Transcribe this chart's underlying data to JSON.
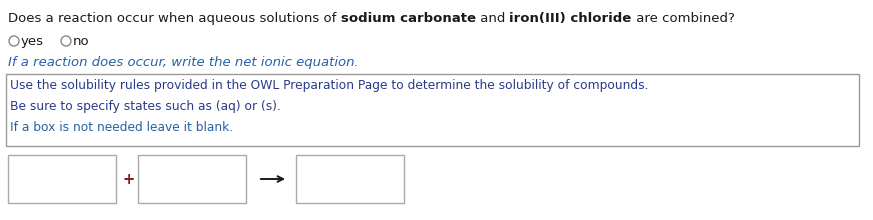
{
  "line1_part1": "Does a reaction occur when aqueous solutions of ",
  "line1_bold1": "sodium carbonate",
  "line1_part2": " and ",
  "line1_bold2": "iron(III) chloride",
  "line1_part3": " are combined?",
  "radio_yes_label": "yes",
  "radio_no_label": "no",
  "line3": "If a reaction does occur, write the net ionic equation.",
  "hint_line1": "Use the solubility rules provided in the OWL Preparation Page to determine the solubility of compounds.",
  "hint_line2": "Be sure to specify states such as (aq) or (s).",
  "hint_line3": "If a box is not needed leave it blank.",
  "bg_color": "#ffffff",
  "black": "#1a1a1a",
  "blue": "#2860a8",
  "dark_red": "#8b1a1a",
  "hint_text1_color": "#333399",
  "hint_text2_color": "#333399",
  "hint_text3_color": "#2860a8",
  "radio_color": "#888888",
  "box_color": "#aaaaaa",
  "plus_color": "#8b1a1a",
  "fig_w": 8.73,
  "fig_h": 2.2,
  "dpi": 100
}
